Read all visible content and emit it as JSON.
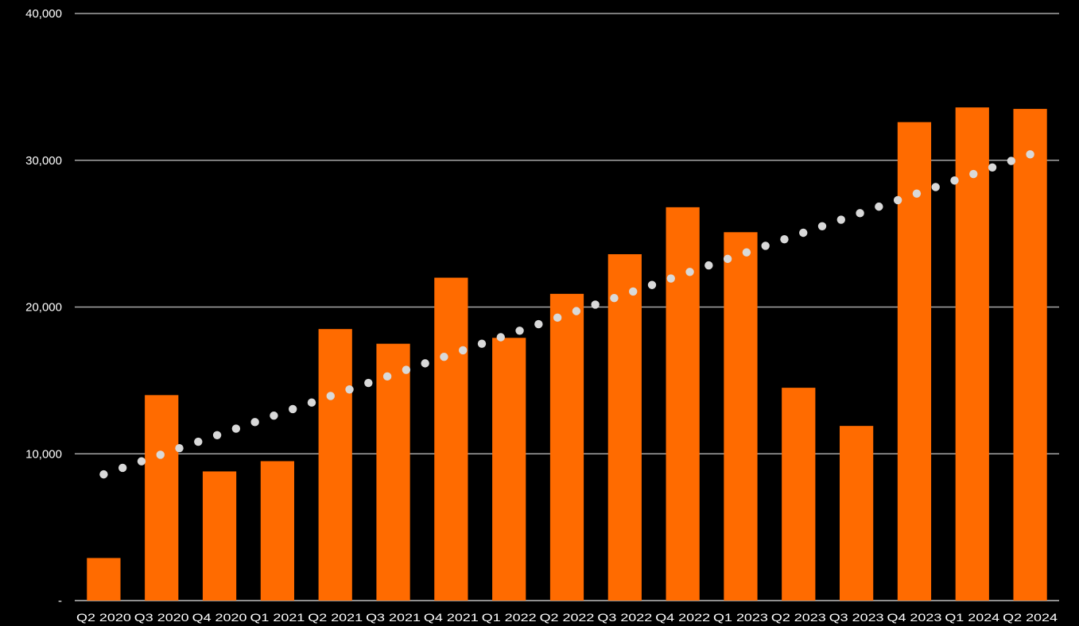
{
  "chart_data": {
    "type": "bar",
    "title": "",
    "xlabel": "",
    "ylabel": "",
    "ylim": [
      0,
      40000
    ],
    "yticks": [
      {
        "value": 0,
        "label": "-"
      },
      {
        "value": 10000,
        "label": "10,000"
      },
      {
        "value": 20000,
        "label": "20,000"
      },
      {
        "value": 30000,
        "label": "30,000"
      },
      {
        "value": 40000,
        "label": "40,000"
      }
    ],
    "grid": true,
    "legend": "none",
    "categories": [
      "Q2 2020",
      "Q3 2020",
      "Q4 2020",
      "Q1 2021",
      "Q2 2021",
      "Q3 2021",
      "Q4 2021",
      "Q1 2022",
      "Q2 2022",
      "Q3 2022",
      "Q4 2022",
      "Q1 2023",
      "Q2 2023",
      "Q3 2023",
      "Q4 2023",
      "Q1 2024",
      "Q2 2024"
    ],
    "series": [
      {
        "values": [
          2900,
          14000,
          8800,
          9500,
          18500,
          17500,
          22000,
          17900,
          20900,
          23600,
          26800,
          25100,
          14500,
          11900,
          32600,
          33600,
          33500
        ],
        "color": "#ff6b00"
      }
    ],
    "trendline": {
      "style": "dotted",
      "color": "#d9d9d9",
      "start": 8600,
      "end": 30400
    }
  }
}
